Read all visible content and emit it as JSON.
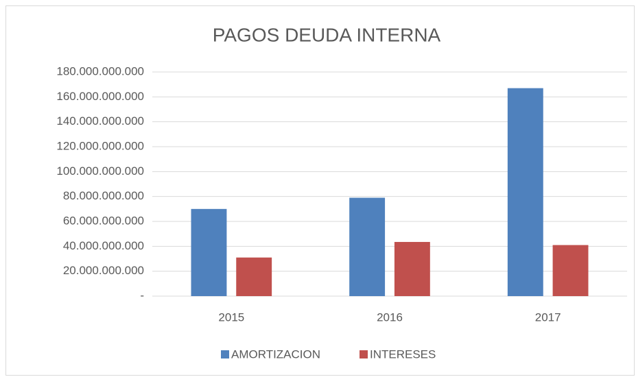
{
  "chart_data": {
    "type": "bar",
    "title": "PAGOS DEUDA INTERNA",
    "categories": [
      "2015",
      "2016",
      "2017"
    ],
    "series": [
      {
        "name": "AMORTIZACION",
        "color": "#4f81bd",
        "values": [
          70000000000,
          79000000000,
          167000000000
        ]
      },
      {
        "name": "INTERESES",
        "color": "#c0504d",
        "values": [
          31000000000,
          43500000000,
          41000000000
        ]
      }
    ],
    "ylim": [
      0,
      180000000000
    ],
    "yticks": [
      {
        "value": 0,
        "label": "-"
      },
      {
        "value": 20000000000,
        "label": "20.000.000.000"
      },
      {
        "value": 40000000000,
        "label": "40.000.000.000"
      },
      {
        "value": 60000000000,
        "label": "60.000.000.000"
      },
      {
        "value": 80000000000,
        "label": "80.000.000.000"
      },
      {
        "value": 100000000000,
        "label": "100.000.000.000"
      },
      {
        "value": 120000000000,
        "label": "120.000.000.000"
      },
      {
        "value": 140000000000,
        "label": "140.000.000.000"
      },
      {
        "value": 160000000000,
        "label": "160.000.000.000"
      },
      {
        "value": 180000000000,
        "label": "180.000.000.000"
      }
    ],
    "grid": true,
    "legend": "bottom"
  }
}
